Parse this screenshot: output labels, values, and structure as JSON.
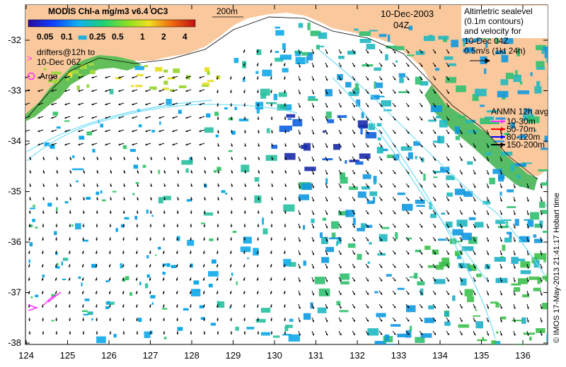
{
  "colorbar": {
    "title": "MODIS Chl-a mg/m3 v6.4 OC3",
    "ticks": [
      "0.05",
      "0.1",
      "0.25",
      "0.5",
      "1",
      "2",
      "4"
    ]
  },
  "legend": {
    "drifters": [
      "drifters@12h to",
      "10-Dec 06Z"
    ],
    "argo": "Argo",
    "depth_label": "200m",
    "date": "10-Dec-2003",
    "time": "04Z",
    "altimetry": [
      "Altimetric sealevel",
      "(0.1m contours)",
      "and velocity for",
      "10-Dec 04Z",
      "0.5m/s (1kt 24h)"
    ],
    "anmn_title": "ANMN 12h avg",
    "anmn": [
      {
        "label": "10-30m",
        "color": "#ff33ff"
      },
      {
        "label": "50-70m",
        "color": "#ff0000"
      },
      {
        "label": "80-120m",
        "color": "#0000ff"
      },
      {
        "label": "150-200m",
        "color": "#000000"
      }
    ],
    "credit": "© IMOS 17-May-2013 21:41:17 Hobart time"
  },
  "axes": {
    "x_ticks": [
      "124",
      "125",
      "126",
      "127",
      "128",
      "129",
      "130",
      "131",
      "132",
      "133",
      "134",
      "135",
      "136"
    ],
    "y_ticks": [
      "-32",
      "-33",
      "-34",
      "-35",
      "-36",
      "-37",
      "-38"
    ]
  },
  "colors": {
    "land": "#f9c89d",
    "magenta": "#ff33ff",
    "contour": "#6fdcf5"
  }
}
